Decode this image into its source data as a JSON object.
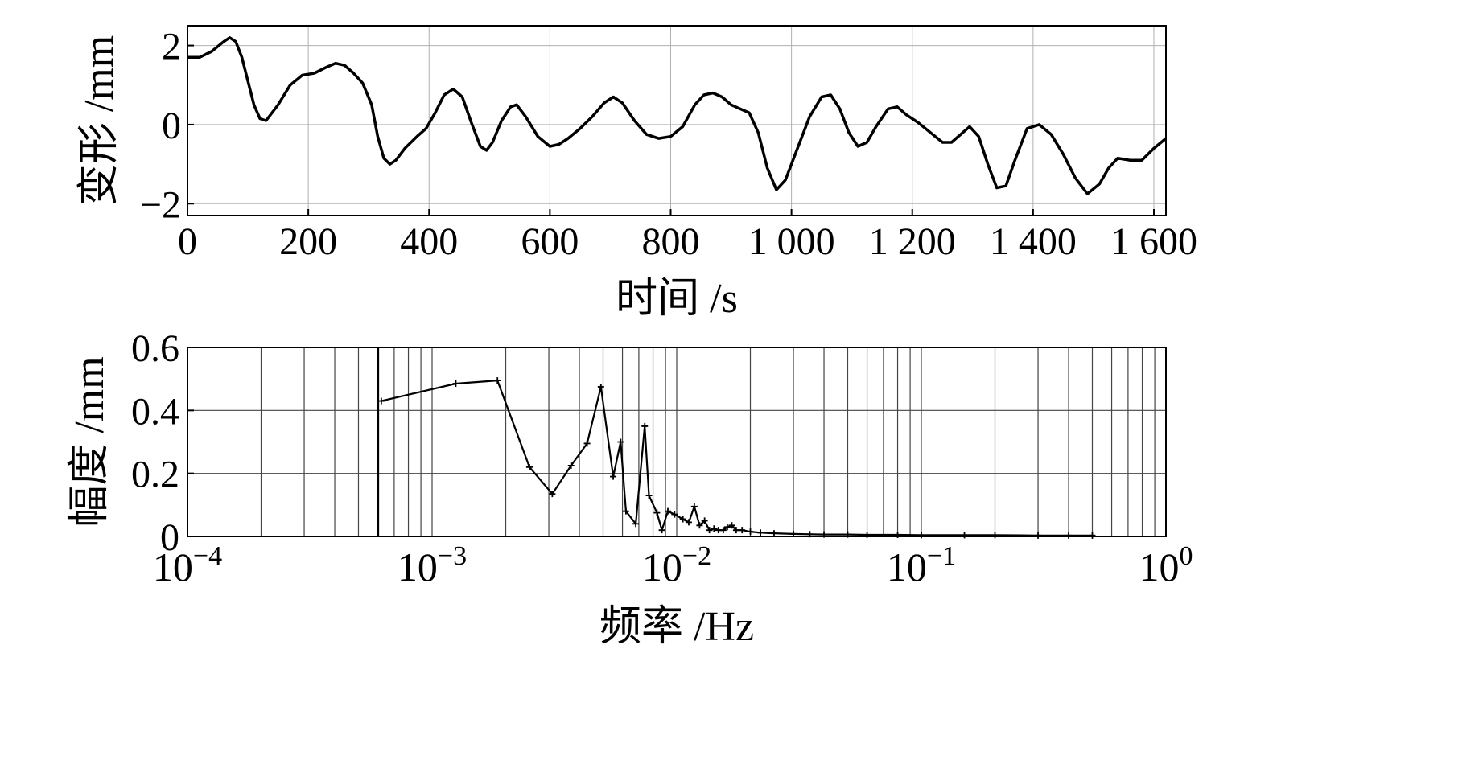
{
  "chart_data": [
    {
      "type": "line",
      "title": "",
      "xlabel": "时间 /s",
      "ylabel": "变形 /mm",
      "xlim": [
        0,
        1620
      ],
      "ylim": [
        -2.3,
        2.5
      ],
      "xticks": [
        0,
        200,
        400,
        600,
        800,
        1000,
        1200,
        1400,
        1600
      ],
      "xtick_labels": [
        "0",
        "200",
        "400",
        "600",
        "800",
        "1 000",
        "1 200",
        "1 400",
        "1 600"
      ],
      "yticks": [
        -2,
        0,
        2
      ],
      "ytick_labels": [
        "−2",
        "0",
        "2"
      ],
      "grid": true,
      "series": [
        {
          "x": [
            0,
            20,
            40,
            60,
            70,
            80,
            90,
            100,
            110,
            120,
            130,
            150,
            170,
            190,
            210,
            230,
            245,
            260,
            275,
            290,
            305,
            315,
            325,
            335,
            345,
            360,
            380,
            395,
            410,
            425,
            440,
            455,
            470,
            485,
            495,
            505,
            520,
            535,
            545,
            560,
            580,
            600,
            615,
            630,
            650,
            670,
            690,
            705,
            720,
            740,
            760,
            780,
            800,
            820,
            840,
            855,
            870,
            885,
            900,
            915,
            930,
            945,
            960,
            975,
            990,
            1010,
            1030,
            1050,
            1065,
            1080,
            1095,
            1110,
            1125,
            1140,
            1160,
            1175,
            1190,
            1210,
            1230,
            1250,
            1265,
            1280,
            1295,
            1310,
            1325,
            1340,
            1355,
            1370,
            1390,
            1410,
            1430,
            1450,
            1470,
            1490,
            1510,
            1525,
            1540,
            1560,
            1580,
            1600,
            1620
          ],
          "y": [
            1.7,
            1.7,
            1.85,
            2.1,
            2.2,
            2.1,
            1.7,
            1.1,
            0.5,
            0.15,
            0.1,
            0.5,
            1.0,
            1.25,
            1.3,
            1.45,
            1.55,
            1.5,
            1.3,
            1.05,
            0.5,
            -0.3,
            -0.85,
            -1.0,
            -0.9,
            -0.6,
            -0.3,
            -0.1,
            0.3,
            0.75,
            0.9,
            0.7,
            0.05,
            -0.55,
            -0.65,
            -0.45,
            0.1,
            0.45,
            0.5,
            0.2,
            -0.3,
            -0.55,
            -0.5,
            -0.35,
            -0.1,
            0.2,
            0.55,
            0.7,
            0.55,
            0.1,
            -0.25,
            -0.35,
            -0.3,
            -0.05,
            0.5,
            0.75,
            0.8,
            0.7,
            0.5,
            0.4,
            0.3,
            -0.2,
            -1.1,
            -1.65,
            -1.4,
            -0.6,
            0.2,
            0.7,
            0.75,
            0.4,
            -0.2,
            -0.55,
            -0.45,
            -0.05,
            0.4,
            0.45,
            0.25,
            0.05,
            -0.2,
            -0.45,
            -0.45,
            -0.25,
            -0.05,
            -0.3,
            -1.0,
            -1.6,
            -1.55,
            -0.9,
            -0.1,
            0.0,
            -0.25,
            -0.75,
            -1.35,
            -1.75,
            -1.5,
            -1.1,
            -0.85,
            -0.9,
            -0.9,
            -0.6,
            -0.35
          ]
        }
      ]
    },
    {
      "type": "line",
      "title": "",
      "xlabel": "频率 /Hz",
      "ylabel": "幅度 /mm",
      "xscale": "log",
      "xlim": [
        0.0001,
        1
      ],
      "ylim": [
        0,
        0.6
      ],
      "xtick_base": "10",
      "xtick_exponents": [
        "−4",
        "−3",
        "−2",
        "−1",
        "0"
      ],
      "yticks": [
        0,
        0.2,
        0.4,
        0.6
      ],
      "ytick_labels": [
        "0",
        "0.2",
        "0.4",
        "0.6"
      ],
      "grid": true,
      "series": [
        {
          "x": [
            0.00062,
            0.00125,
            0.00185,
            0.0025,
            0.0031,
            0.0037,
            0.0043,
            0.0049,
            0.0055,
            0.0059,
            0.0062,
            0.0068,
            0.0074,
            0.0077,
            0.0083,
            0.0087,
            0.0092,
            0.0098,
            0.0106,
            0.0112,
            0.0118,
            0.0124,
            0.013,
            0.0136,
            0.0142,
            0.0148,
            0.0155,
            0.0161,
            0.0168,
            0.0175,
            0.0185,
            0.02,
            0.022,
            0.025,
            0.03,
            0.035,
            0.04,
            0.05,
            0.06,
            0.08,
            0.1,
            0.15,
            0.2,
            0.3,
            0.4,
            0.5
          ],
          "y": [
            0.43,
            0.485,
            0.495,
            0.22,
            0.135,
            0.225,
            0.295,
            0.475,
            0.19,
            0.3,
            0.08,
            0.04,
            0.35,
            0.13,
            0.075,
            0.02,
            0.08,
            0.07,
            0.055,
            0.045,
            0.095,
            0.035,
            0.05,
            0.02,
            0.025,
            0.02,
            0.02,
            0.03,
            0.035,
            0.02,
            0.02,
            0.015,
            0.012,
            0.01,
            0.008,
            0.007,
            0.006,
            0.006,
            0.005,
            0.005,
            0.004,
            0.004,
            0.004,
            0.003,
            0.003,
            0.003
          ]
        }
      ]
    }
  ]
}
